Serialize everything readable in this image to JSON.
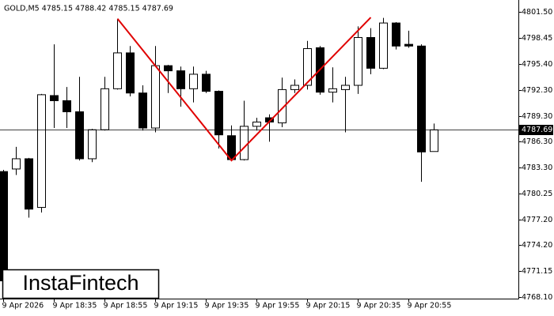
{
  "chart_data": {
    "type": "candlestick",
    "title": "GOLD,M5  4785.15 4788.42 4785.15 4787.69",
    "logo": "InstaFintech",
    "categories": [
      "9 Apr 2026",
      null,
      null,
      null,
      "9 Apr 18:35",
      null,
      null,
      null,
      "9 Apr 18:55",
      null,
      null,
      null,
      "9 Apr 19:15",
      null,
      null,
      null,
      "9 Apr 19:35",
      null,
      null,
      null,
      "9 Apr 19:55",
      null,
      null,
      null,
      "9 Apr 20:15",
      null,
      null,
      null,
      "9 Apr 20:35",
      null,
      null,
      null,
      "9 Apr 20:55",
      null,
      null
    ],
    "open": [
      4782.8,
      4783.1,
      4784.3,
      4778.6,
      4791.7,
      4791.1,
      4789.8,
      4784.3,
      4787.7,
      4792.5,
      4796.7,
      4792.0,
      4787.9,
      4795.2,
      4794.6,
      4792.5,
      4794.2,
      4792.2,
      4787.0,
      4784.2,
      4788.1,
      4789.1,
      4788.5,
      4792.4,
      4792.9,
      4797.3,
      4792.1,
      4792.4,
      4792.9,
      4798.5,
      4794.9,
      4800.2,
      4797.7,
      4797.5,
      4785.15
    ],
    "high": [
      4783.0,
      4785.7,
      4784.4,
      4791.9,
      4797.7,
      4792.7,
      4793.9,
      4787.8,
      4793.9,
      4800.7,
      4797.5,
      4792.9,
      4797.5,
      4795.3,
      4795.1,
      4795.1,
      4794.6,
      4792.3,
      4788.2,
      4791.1,
      4789.1,
      4789.5,
      4793.8,
      4793.6,
      4798.1,
      4797.5,
      4795.0,
      4793.9,
      4799.8,
      4799.6,
      4800.8,
      4800.3,
      4799.3,
      4797.7,
      4788.42
    ],
    "low": [
      4769.5,
      4782.4,
      4777.4,
      4778.0,
      4787.9,
      4787.9,
      4784.1,
      4783.9,
      4787.6,
      4792.4,
      4791.6,
      4787.6,
      4787.4,
      4792.0,
      4790.4,
      4790.9,
      4792.0,
      4785.5,
      4784.1,
      4784.1,
      4787.6,
      4786.3,
      4788.0,
      4792.0,
      4792.4,
      4791.8,
      4790.9,
      4787.4,
      4791.9,
      4794.2,
      4794.8,
      4797.1,
      4797.3,
      4781.6,
      4785.15
    ],
    "close": [
      4770.0,
      4784.3,
      4778.4,
      4791.8,
      4791.1,
      4789.8,
      4784.3,
      4787.7,
      4792.5,
      4796.7,
      4792.0,
      4787.9,
      4795.2,
      4794.6,
      4792.5,
      4794.2,
      4792.2,
      4787.1,
      4784.2,
      4788.1,
      4788.6,
      4788.6,
      4792.4,
      4792.9,
      4797.2,
      4792.1,
      4792.5,
      4792.9,
      4798.5,
      4794.9,
      4800.2,
      4797.5,
      4797.5,
      4785.1,
      4787.69
    ],
    "last_price": 4787.69,
    "pattern": {
      "color": "#e00000",
      "x": [
        9,
        18,
        29
      ],
      "y": [
        4800.7,
        4784.1,
        4800.85
      ]
    },
    "ylim": [
      4767.92,
      4802.43
    ],
    "yticks": [
      {
        "value": 4801.5,
        "label": "4801.50"
      },
      {
        "value": 4798.45,
        "label": "4798.45"
      },
      {
        "value": 4795.4,
        "label": "4795.40"
      },
      {
        "value": 4792.3,
        "label": "4792.30"
      },
      {
        "value": 4789.3,
        "label": "4789.30"
      },
      {
        "value": 4786.3,
        "label": "4786.30"
      },
      {
        "value": 4783.3,
        "label": "4783.30"
      },
      {
        "value": 4780.25,
        "label": "4780.25"
      },
      {
        "value": 4777.2,
        "label": "4777.20"
      },
      {
        "value": 4774.2,
        "label": "4774.20"
      },
      {
        "value": 4771.15,
        "label": "4771.15"
      },
      {
        "value": 4768.1,
        "label": "4768.10"
      }
    ],
    "grid": false
  }
}
